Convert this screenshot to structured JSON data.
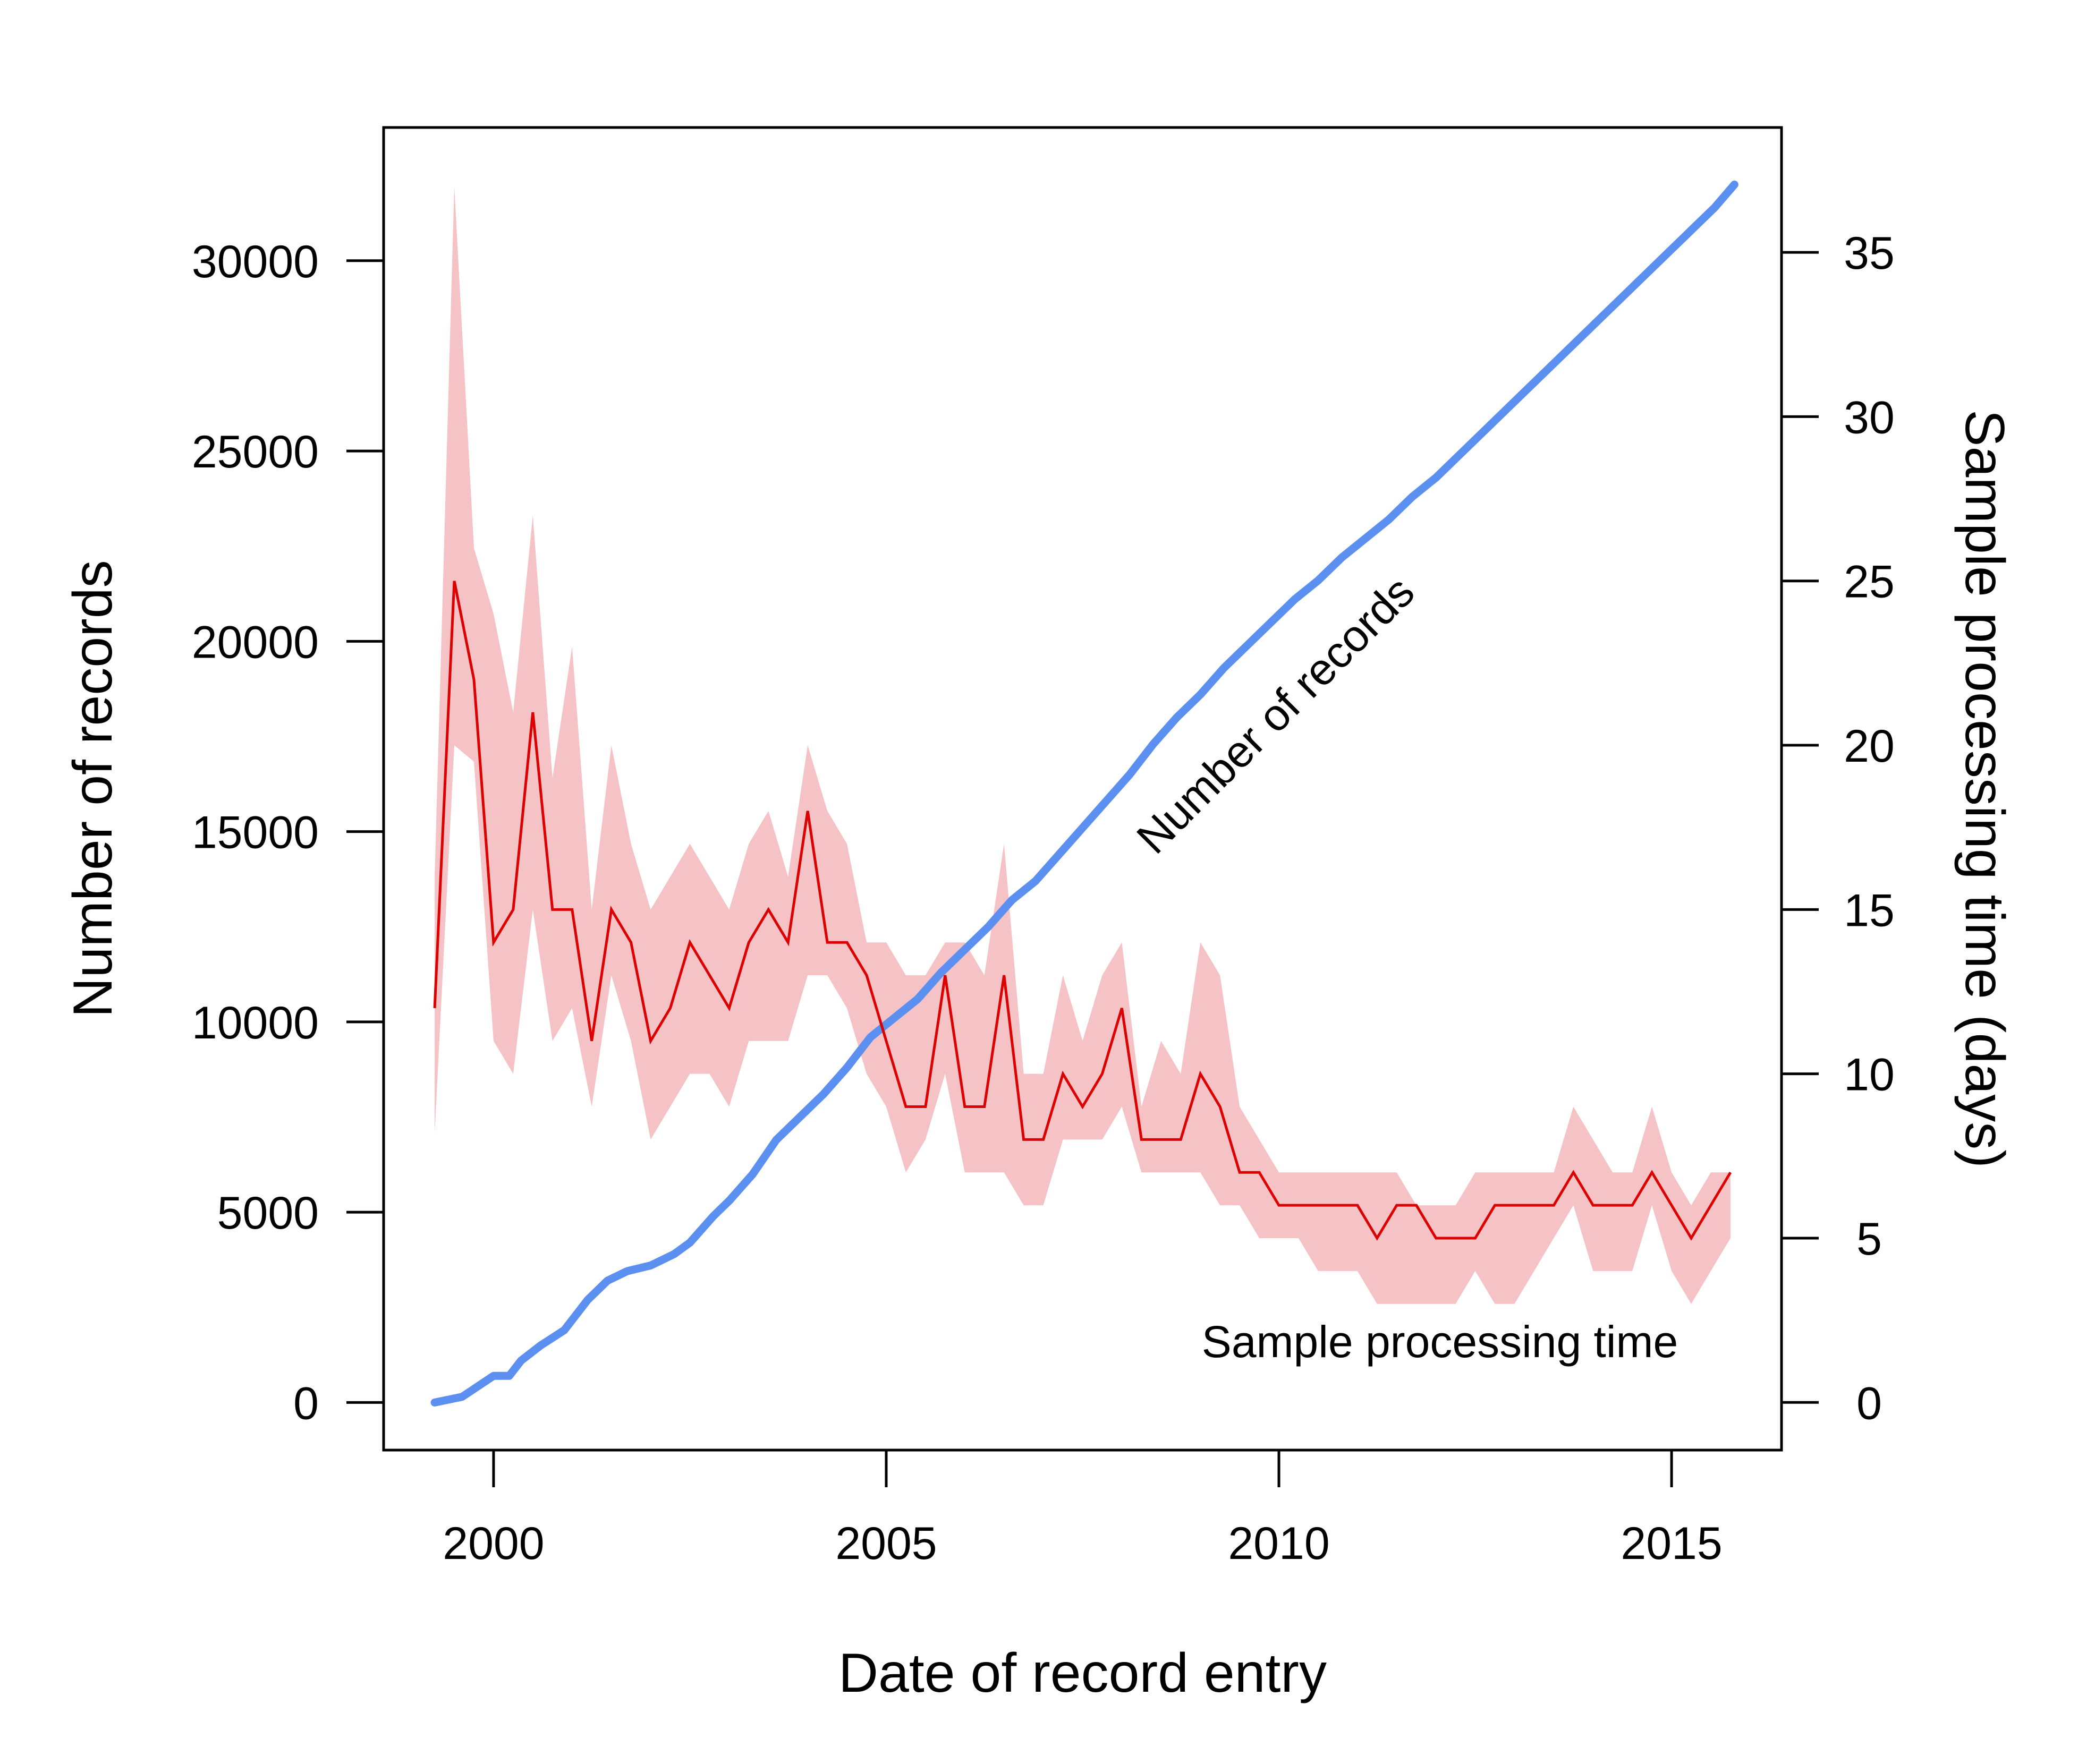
{
  "chart_data": {
    "type": "line",
    "title": "",
    "xlabel": "Date of record entry",
    "ylabel": "Number of records",
    "y2label": "Sample processing time (days)",
    "xlim": [
      1998.6,
      2016.4
    ],
    "ylim": [
      -1250,
      33500
    ],
    "y2lim": [
      -1.45,
      38.8
    ],
    "x_ticks": [
      2000,
      2005,
      2010,
      2015
    ],
    "y_ticks": [
      0,
      5000,
      10000,
      15000,
      20000,
      25000,
      30000
    ],
    "y2_ticks": [
      0,
      5,
      10,
      15,
      20,
      25,
      30,
      35
    ],
    "grid": false,
    "legend": "none",
    "colors": {
      "records": "#5b8ff0",
      "processing": "#dd0000",
      "band": "#f5c3c6"
    },
    "series": [
      {
        "name": "Number of records",
        "axis": "left",
        "x": [
          1999.25,
          1999.6,
          2000.0,
          2000.2,
          2000.35,
          2000.6,
          2000.9,
          2001.2,
          2001.45,
          2001.7,
          2002.0,
          2002.3,
          2002.5,
          2002.8,
          2003.0,
          2003.3,
          2003.6,
          2003.9,
          2004.2,
          2004.5,
          2004.8,
          2005.1,
          2005.4,
          2005.7,
          2006.0,
          2006.3,
          2006.6,
          2006.9,
          2007.2,
          2007.5,
          2007.8,
          2008.1,
          2008.4,
          2008.7,
          2009.0,
          2009.3,
          2009.6,
          2009.9,
          2010.2,
          2010.5,
          2010.8,
          2011.1,
          2011.4,
          2011.7,
          2012.0,
          2012.3,
          2012.6,
          2012.9,
          2013.2,
          2013.5,
          2013.8,
          2014.1,
          2014.4,
          2014.7,
          2015.0,
          2015.3,
          2015.55,
          2015.8
        ],
        "values": [
          0,
          150,
          700,
          700,
          1100,
          1500,
          1900,
          2700,
          3200,
          3450,
          3600,
          3900,
          4200,
          4900,
          5300,
          6000,
          6900,
          7500,
          8100,
          8800,
          9600,
          10100,
          10600,
          11300,
          11900,
          12500,
          13200,
          13700,
          14400,
          15100,
          15800,
          16500,
          17300,
          18000,
          18600,
          19300,
          19900,
          20500,
          21100,
          21600,
          22200,
          22700,
          23200,
          23800,
          24300,
          24900,
          25500,
          26100,
          26700,
          27300,
          27900,
          28500,
          29100,
          29700,
          30300,
          30900,
          31400,
          32000
        ]
      },
      {
        "name": "Sample processing time",
        "axis": "right",
        "x": [
          1999.25,
          1999.5,
          1999.75,
          2000.0,
          2000.25,
          2000.5,
          2000.75,
          2001.0,
          2001.25,
          2001.5,
          2001.75,
          2002.0,
          2002.25,
          2002.5,
          2002.75,
          2003.0,
          2003.25,
          2003.5,
          2003.75,
          2004.0,
          2004.25,
          2004.5,
          2004.75,
          2005.0,
          2005.25,
          2005.5,
          2005.75,
          2006.0,
          2006.25,
          2006.5,
          2006.75,
          2007.0,
          2007.25,
          2007.5,
          2007.75,
          2008.0,
          2008.25,
          2008.5,
          2008.75,
          2009.0,
          2009.25,
          2009.5,
          2009.75,
          2010.0,
          2010.25,
          2010.5,
          2010.75,
          2011.0,
          2011.25,
          2011.5,
          2011.75,
          2012.0,
          2012.25,
          2012.5,
          2012.75,
          2013.0,
          2013.25,
          2013.5,
          2013.75,
          2014.0,
          2014.25,
          2014.5,
          2014.75,
          2015.0,
          2015.25,
          2015.5,
          2015.75
        ],
        "values": [
          12,
          25,
          22,
          14,
          15,
          21,
          15,
          15,
          11,
          15,
          14,
          11,
          12,
          14,
          13,
          12,
          14,
          15,
          14,
          18,
          14,
          14,
          13,
          11,
          9,
          9,
          13,
          9,
          9,
          13,
          8,
          8,
          10,
          9,
          10,
          12,
          8,
          8,
          8,
          10,
          9,
          7,
          7,
          6,
          6,
          6,
          6,
          6,
          5,
          6,
          6,
          5,
          5,
          5,
          6,
          6,
          6,
          6,
          7,
          6,
          6,
          6,
          7,
          6,
          5,
          6,
          7
        ],
        "lower": [
          8.2,
          20.0,
          19.5,
          11.0,
          10.0,
          15.0,
          11.0,
          12.0,
          9.0,
          13.0,
          11.0,
          8.0,
          9.0,
          10.0,
          10.0,
          9.0,
          11.0,
          11.0,
          11.0,
          13.0,
          13.0,
          12.0,
          10.0,
          9.0,
          7.0,
          8.0,
          10.0,
          7.0,
          7.0,
          7.0,
          6.0,
          6.0,
          8.0,
          8.0,
          8.0,
          9.0,
          7.0,
          7.0,
          7.0,
          7.0,
          6.0,
          6.0,
          5.0,
          5.0,
          5.0,
          4.0,
          4.0,
          4.0,
          3.0,
          3.0,
          3.0,
          3.0,
          3.0,
          4.0,
          3.0,
          3.0,
          4.0,
          5.0,
          6.0,
          4.0,
          4.0,
          4.0,
          6.0,
          4.0,
          3.0,
          4.0,
          5.0
        ],
        "upper": [
          16.0,
          37.0,
          26.0,
          24.0,
          21.0,
          27.0,
          19.0,
          23.0,
          15.0,
          20.0,
          17.0,
          15.0,
          16.0,
          17.0,
          16.0,
          15.0,
          17.0,
          18.0,
          16.0,
          20.0,
          18.0,
          17.0,
          14.0,
          14.0,
          13.0,
          13.0,
          14.0,
          14.0,
          13.0,
          17.0,
          10.0,
          10.0,
          13.0,
          11.0,
          13.0,
          14.0,
          9.0,
          11.0,
          10.0,
          14.0,
          13.0,
          9.0,
          8.0,
          7.0,
          7.0,
          7.0,
          7.0,
          7.0,
          7.0,
          7.0,
          6.0,
          6.0,
          6.0,
          7.0,
          7.0,
          7.0,
          7.0,
          7.0,
          9.0,
          8.0,
          7.0,
          7.0,
          9.0,
          7.0,
          6.0,
          7.0,
          7.0
        ]
      }
    ],
    "annotations": [
      {
        "text": "Number of records",
        "color": "#5b8ff0"
      },
      {
        "text": "Sample processing time",
        "color": "#dd0000"
      }
    ]
  }
}
